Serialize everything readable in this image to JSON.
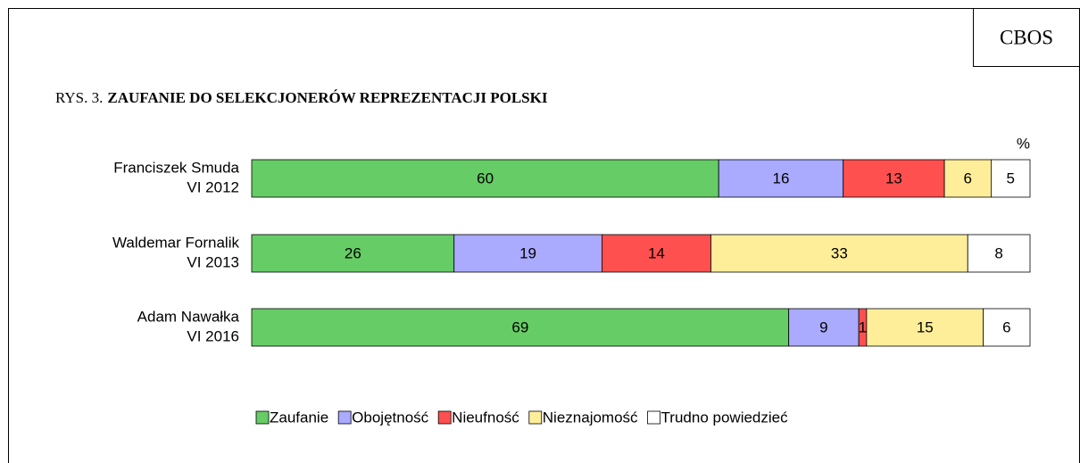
{
  "chart_data": {
    "type": "stacked_bar_horizontal",
    "source": "CBOS",
    "figure_label": "RYS. 3.",
    "title": "ZAUFANIE DO SELEKCJONERÓW REPREZENTACJI POLSKI",
    "unit_label": "%",
    "categories": [
      [
        "Franciszek Smuda",
        "VI 2012"
      ],
      [
        "Waldemar Fornalik",
        "VI 2013"
      ],
      [
        "Adam Nawałka",
        "VI 2016"
      ]
    ],
    "series": [
      {
        "name": "Zaufanie",
        "color": "#66cc66",
        "values": [
          60,
          26,
          69
        ]
      },
      {
        "name": "Obojętność",
        "color": "#aaaaff",
        "values": [
          16,
          19,
          9
        ]
      },
      {
        "name": "Nieufność",
        "color": "#ff5050",
        "values": [
          13,
          14,
          1
        ]
      },
      {
        "name": "Nieznajomość",
        "color": "#ffee99",
        "values": [
          6,
          33,
          15
        ]
      },
      {
        "name": "Trudno powiedzieć",
        "color": "#ffffff",
        "values": [
          5,
          8,
          6
        ]
      }
    ],
    "xlim": [
      0,
      100
    ],
    "legend": "bottom"
  }
}
